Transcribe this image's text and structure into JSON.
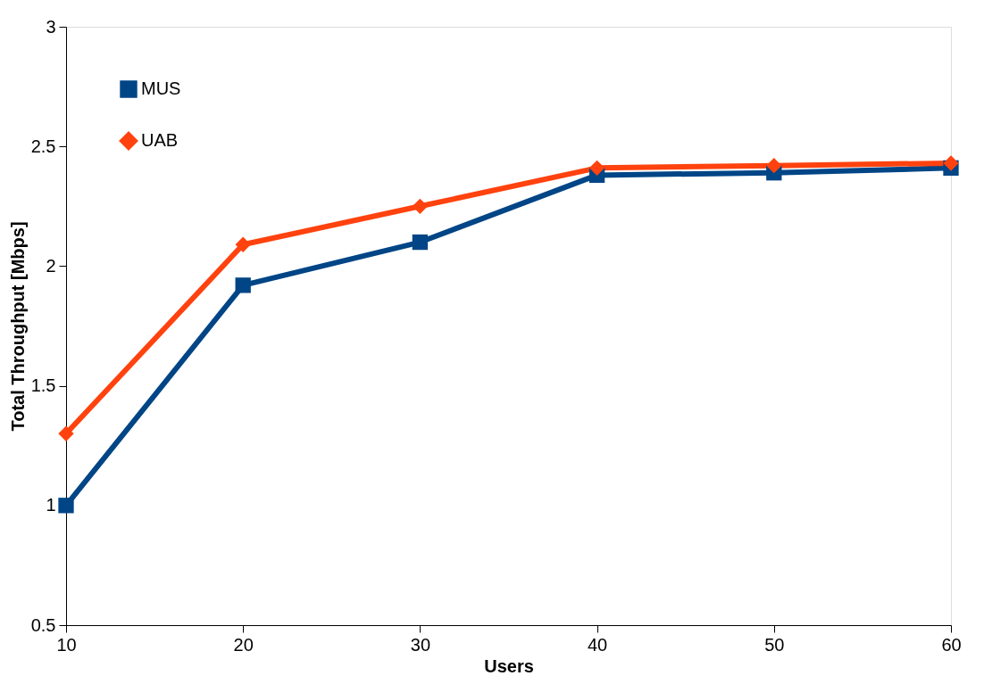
{
  "chart_data": {
    "type": "line",
    "xlabel": "Users",
    "ylabel": "Total Throughput [Mbps]",
    "x": [
      10,
      20,
      30,
      40,
      50,
      60
    ],
    "series": [
      {
        "name": "MUS",
        "color": "#004586",
        "marker": "square",
        "values": [
          1.0,
          1.92,
          2.1,
          2.38,
          2.39,
          2.41
        ]
      },
      {
        "name": "UAB",
        "color": "#ff420e",
        "marker": "diamond",
        "values": [
          1.3,
          2.09,
          2.25,
          2.41,
          2.42,
          2.43
        ]
      }
    ],
    "xlim": [
      10,
      60
    ],
    "xticks": [
      10,
      20,
      30,
      40,
      50,
      60
    ],
    "ylim": [
      0.5,
      3
    ],
    "yticks": [
      0.5,
      1,
      1.5,
      2,
      2.5,
      3
    ],
    "grid": false,
    "legend": "top left",
    "line_style": "solid"
  }
}
